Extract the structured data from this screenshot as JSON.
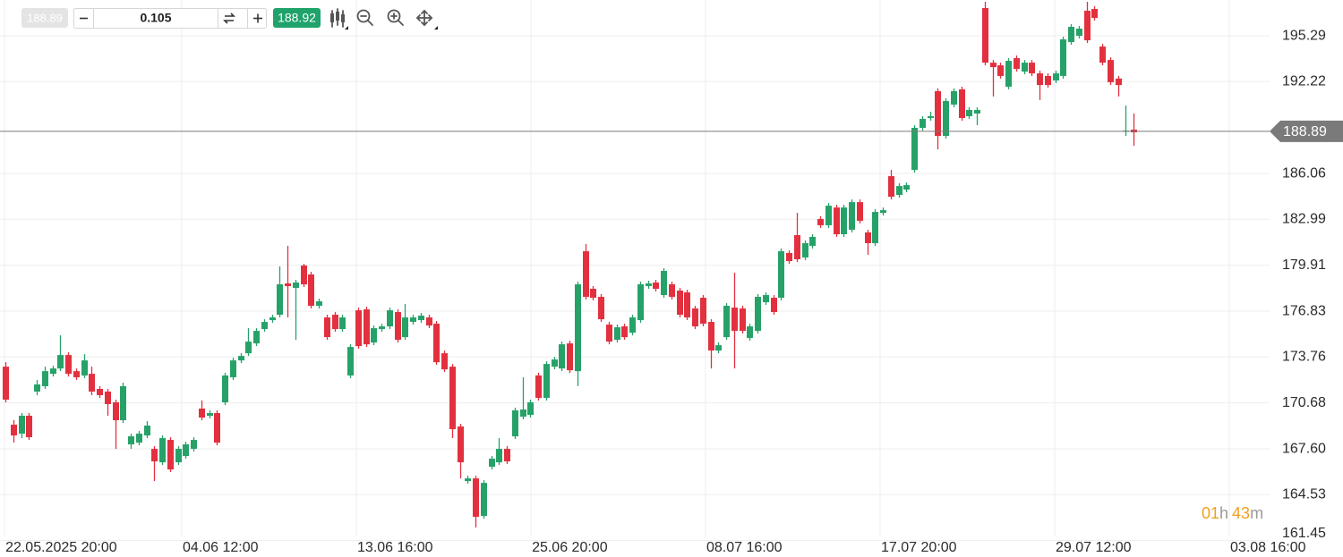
{
  "toolbar": {
    "bid": "188.89",
    "amount": "0.105",
    "ask": "188.92"
  },
  "countdown": {
    "hours": "01",
    "hours_unit": "h",
    "minutes": "43",
    "minutes_unit": "m"
  },
  "chart_data": {
    "type": "candlestick",
    "colors": {
      "up": "#26a269",
      "down": "#e3303f",
      "last_price": "#7a7a7a"
    },
    "grid": true,
    "last_price": 188.89,
    "xlim": [
      -0.69,
      161.37
    ],
    "xticks": [
      {
        "value": -0.11,
        "label": "22.05.2025 20:00"
      },
      {
        "value": 22.51,
        "label": "04.06 12:00"
      },
      {
        "value": 44.8,
        "label": "13.06 16:00"
      },
      {
        "value": 67.09,
        "label": "25.06 20:00"
      },
      {
        "value": 89.37,
        "label": "08.07 16:00"
      },
      {
        "value": 111.66,
        "label": "17.07 20:00"
      },
      {
        "value": 133.94,
        "label": "29.07 12:00"
      },
      {
        "value": 156.23,
        "label": "03.08 16:00"
      }
    ],
    "ylim": [
      161.13,
      197.69
    ],
    "yticks": [
      195.29,
      192.22,
      186.06,
      182.99,
      179.91,
      176.83,
      173.76,
      170.68,
      {
        "value": 167.6,
        "label": "167.60"
      },
      164.53,
      161.45
    ],
    "open": [
      173.11,
      169.22,
      168.62,
      169.82,
      171.44,
      171.8,
      172.63,
      172.99,
      173.89,
      172.81,
      172.52,
      172.63,
      171.62,
      171.44,
      170.72,
      169.52,
      167.9,
      168.02,
      168.5,
      167.6,
      166.7,
      168.2,
      166.7,
      167.12,
      167.6,
      170.3,
      169.82,
      170.0,
      170.72,
      172.4,
      173.53,
      174.01,
      174.67,
      175.63,
      176.23,
      176.59,
      178.69,
      178.39,
      179.89,
      179.29,
      177.19,
      176.41,
      176.59,
      175.63,
      172.52,
      176.89,
      176.95,
      174.73,
      175.63,
      175.81,
      176.77,
      175.09,
      176.11,
      176.23,
      176.41,
      175.99,
      174.01,
      173.11,
      169.1,
      165.44,
      165.62,
      163.1,
      166.4,
      166.7,
      167.6,
      168.44,
      169.76,
      169.88,
      172.52,
      171.02,
      173.11,
      172.99,
      174.67,
      172.81,
      180.85,
      178.33,
      177.79,
      175.93,
      174.91,
      175.81,
      175.39,
      176.23,
      178.51,
      178.75,
      177.91,
      178.63,
      178.21,
      178.09,
      177.01,
      177.73,
      176.11,
      174.19,
      175.09,
      177.07,
      177.01,
      175.03,
      175.51,
      177.43,
      177.73,
      177.73,
      180.73,
      181.93,
      180.43,
      181.21,
      183.01,
      182.59,
      183.78,
      181.99,
      182.29,
      184.14,
      182.11,
      181.39,
      183.42,
      185.88,
      184.62,
      184.98,
      186.3,
      189.12,
      189.78,
      191.58,
      188.58,
      190.68,
      191.7,
      189.9,
      190.08,
      197.15,
      193.49,
      193.31,
      191.88,
      193.79,
      192.89,
      193.49,
      192.77,
      192.6,
      192.3,
      192.6,
      194.87,
      195.29,
      196.97,
      197.09,
      194.57,
      193.67,
      192.42,
      188.88,
      189.0
    ],
    "high": [
      173.41,
      169.52,
      170.0,
      170.0,
      172.22,
      173.11,
      173.17,
      175.21,
      174.07,
      172.99,
      173.95,
      173.11,
      171.8,
      171.62,
      170.9,
      172.04,
      168.62,
      168.8,
      169.46,
      167.78,
      168.5,
      168.38,
      167.78,
      168.08,
      168.38,
      170.84,
      170.18,
      170.18,
      172.7,
      173.71,
      174.01,
      175.69,
      175.69,
      176.29,
      176.59,
      179.83,
      181.21,
      178.93,
      180.01,
      179.47,
      177.67,
      176.59,
      176.77,
      176.59,
      174.61,
      177.07,
      177.13,
      175.87,
      175.99,
      177.07,
      176.95,
      177.31,
      176.59,
      176.71,
      176.59,
      176.17,
      174.19,
      173.29,
      169.28,
      165.8,
      165.8,
      165.5,
      167.12,
      168.32,
      167.78,
      170.36,
      172.4,
      170.9,
      172.7,
      173.47,
      173.77,
      174.79,
      174.85,
      178.81,
      181.33,
      178.51,
      177.97,
      176.11,
      175.93,
      175.99,
      176.59,
      178.81,
      178.87,
      178.93,
      179.71,
      178.81,
      178.39,
      178.27,
      177.19,
      177.91,
      176.29,
      174.73,
      177.37,
      179.41,
      177.19,
      175.99,
      177.97,
      178.09,
      177.91,
      181.03,
      180.91,
      183.42,
      181.57,
      181.99,
      183.19,
      184.08,
      183.96,
      183.96,
      184.32,
      184.32,
      182.29,
      183.66,
      183.78,
      186.3,
      185.4,
      185.46,
      189.3,
      189.9,
      190.2,
      191.76,
      191.1,
      191.76,
      191.88,
      190.5,
      190.5,
      197.57,
      193.67,
      193.49,
      193.79,
      193.97,
      193.67,
      193.67,
      192.95,
      192.78,
      192.95,
      195.23,
      196.07,
      195.95,
      197.57,
      197.27,
      194.75,
      193.85,
      192.6,
      190.62,
      190.08
    ],
    "low": [
      170.72,
      168.02,
      168.32,
      168.2,
      171.2,
      171.62,
      172.45,
      172.81,
      172.45,
      172.22,
      172.34,
      171.2,
      171.02,
      169.82,
      167.6,
      169.34,
      167.6,
      167.84,
      168.32,
      165.44,
      166.52,
      166.04,
      166.52,
      166.94,
      167.42,
      169.52,
      169.64,
      167.84,
      170.54,
      172.22,
      173.35,
      173.83,
      174.49,
      175.45,
      176.05,
      176.41,
      176.41,
      174.91,
      178.45,
      177.01,
      177.01,
      174.91,
      175.45,
      175.45,
      172.34,
      174.31,
      174.43,
      174.55,
      175.45,
      175.63,
      174.73,
      174.91,
      175.93,
      176.05,
      175.69,
      173.23,
      172.75,
      168.32,
      165.62,
      165.26,
      162.33,
      162.92,
      166.22,
      166.52,
      166.58,
      168.26,
      169.58,
      169.7,
      170.84,
      170.84,
      172.93,
      172.81,
      172.69,
      171.8,
      177.61,
      177.55,
      176.11,
      174.61,
      174.73,
      174.91,
      175.21,
      176.05,
      178.33,
      178.15,
      177.73,
      177.61,
      176.41,
      176.23,
      175.63,
      175.81,
      172.99,
      174.01,
      174.91,
      172.99,
      175.33,
      174.85,
      175.33,
      177.25,
      176.59,
      177.55,
      180.01,
      180.13,
      180.25,
      181.03,
      182.41,
      182.41,
      181.81,
      181.81,
      182.11,
      182.71,
      180.61,
      181.21,
      183.24,
      184.32,
      184.44,
      184.8,
      186.12,
      188.94,
      189.6,
      187.68,
      188.4,
      190.5,
      189.6,
      189.72,
      189.3,
      193.31,
      191.22,
      192.42,
      191.7,
      192.89,
      192.71,
      192.59,
      190.98,
      191.81,
      192.12,
      192.42,
      194.69,
      195.11,
      194.81,
      196.31,
      193.31,
      192.0,
      191.22,
      188.58,
      187.92
    ],
    "close": [
      170.9,
      168.5,
      169.82,
      168.38,
      171.92,
      172.81,
      172.99,
      173.89,
      172.63,
      172.4,
      173.53,
      171.44,
      171.2,
      170.6,
      169.52,
      171.8,
      168.44,
      168.62,
      169.16,
      166.76,
      168.32,
      166.22,
      167.6,
      167.9,
      168.2,
      169.7,
      170.0,
      168.02,
      172.52,
      173.53,
      173.83,
      174.79,
      175.51,
      176.11,
      176.41,
      178.63,
      178.51,
      178.75,
      178.63,
      177.19,
      177.49,
      175.09,
      175.63,
      176.41,
      174.43,
      174.49,
      174.61,
      175.69,
      175.81,
      176.89,
      174.91,
      176.41,
      176.41,
      176.53,
      175.87,
      173.41,
      172.93,
      168.92,
      166.7,
      165.62,
      163.04,
      165.32,
      166.94,
      167.6,
      166.76,
      170.18,
      170.24,
      170.72,
      171.02,
      173.29,
      173.59,
      174.61,
      172.87,
      178.63,
      177.79,
      177.73,
      176.29,
      174.79,
      175.75,
      175.09,
      176.41,
      178.63,
      178.69,
      178.33,
      179.53,
      177.79,
      176.59,
      176.41,
      175.81,
      175.99,
      174.19,
      174.55,
      177.19,
      175.51,
      175.51,
      175.81,
      177.79,
      177.91,
      176.77,
      180.85,
      180.19,
      180.31,
      181.39,
      181.81,
      182.59,
      183.9,
      181.99,
      183.78,
      184.14,
      182.89,
      181.39,
      183.48,
      183.6,
      184.5,
      185.22,
      185.28,
      189.12,
      189.72,
      189.9,
      188.58,
      190.92,
      191.58,
      189.78,
      190.32,
      190.32,
      193.49,
      193.19,
      192.6,
      193.61,
      193.07,
      193.49,
      192.77,
      191.99,
      191.99,
      192.77,
      195.05,
      195.89,
      195.77,
      194.99,
      196.49,
      193.49,
      192.18,
      191.99,
      188.94,
      188.82
    ]
  }
}
